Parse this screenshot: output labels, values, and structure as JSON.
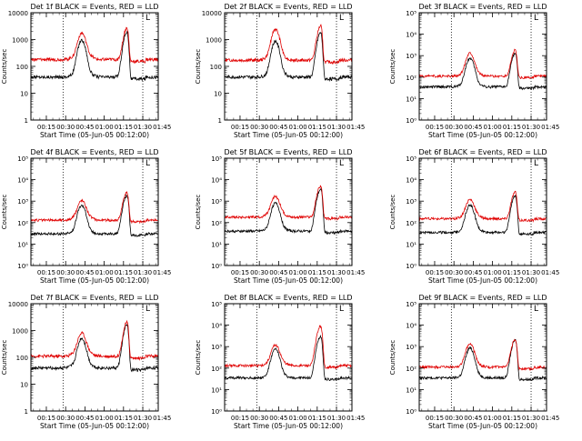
{
  "chart_data": [
    {
      "type": "line",
      "title": "Det 1f BLACK = Events, RED = LLD",
      "xlabel": "Start Time (05-Jun-05 00:12:00)",
      "ylabel": "Counts/sec",
      "yscale": "log",
      "ylim": [
        1,
        10000
      ],
      "ytick_values": [
        1,
        10,
        100,
        1000,
        10000
      ],
      "ytick_labels": [
        "1",
        "10",
        "100",
        "1000",
        "10000"
      ],
      "xlim_minutes": [
        3,
        102
      ],
      "xtick_values": [
        15,
        30,
        45,
        60,
        75,
        90,
        105
      ],
      "xtick_labels": [
        "00:15",
        "00:30",
        "00:45",
        "01:00",
        "01:15",
        "01:30",
        "01:45"
      ],
      "marker_lines_minutes": [
        28,
        90
      ],
      "series": [
        {
          "name": "Events",
          "color": "#000000",
          "baseline": 40,
          "peak1": 900,
          "peak2": 1900
        },
        {
          "name": "LLD",
          "color": "#e00000",
          "baseline": 180,
          "peak1": 1500,
          "peak2": 2700
        }
      ]
    },
    {
      "type": "line",
      "title": "Det 2f BLACK = Events, RED = LLD",
      "xlabel": "Start Time (05-Jun-05 00:12:00)",
      "ylabel": "Counts/sec",
      "yscale": "log",
      "ylim": [
        1,
        10000
      ],
      "ytick_values": [
        1,
        10,
        100,
        1000,
        10000
      ],
      "ytick_labels": [
        "1",
        "10",
        "100",
        "1000",
        "10000"
      ],
      "xlim_minutes": [
        3,
        102
      ],
      "xtick_values": [
        15,
        30,
        45,
        60,
        75,
        90,
        105
      ],
      "xtick_labels": [
        "00:15",
        "00:30",
        "00:45",
        "01:00",
        "01:15",
        "01:30",
        "01:45"
      ],
      "marker_lines_minutes": [
        28,
        90
      ],
      "series": [
        {
          "name": "Events",
          "color": "#000000",
          "baseline": 40,
          "peak1": 800,
          "peak2": 1800
        },
        {
          "name": "LLD",
          "color": "#e00000",
          "baseline": 170,
          "peak1": 2200,
          "peak2": 3200
        }
      ]
    },
    {
      "type": "line",
      "title": "Det 3f BLACK = Events, RED = LLD",
      "xlabel": "Start Time (05-Jun-05 00:12:00)",
      "ylabel": "Counts/sec",
      "yscale": "log",
      "ylim": [
        1,
        100000
      ],
      "ytick_values": [
        1,
        10,
        100,
        1000,
        10000,
        100000
      ],
      "ytick_labels": [
        "10⁰",
        "10¹",
        "10²",
        "10³",
        "10⁴",
        "10⁵"
      ],
      "xlim_minutes": [
        3,
        102
      ],
      "xtick_values": [
        15,
        30,
        45,
        60,
        75,
        90,
        105
      ],
      "xtick_labels": [
        "00:15",
        "00:30",
        "00:45",
        "01:00",
        "01:15",
        "01:30",
        "01:45"
      ],
      "marker_lines_minutes": [
        28,
        90
      ],
      "series": [
        {
          "name": "Events",
          "color": "#000000",
          "baseline": 35,
          "peak1": 700,
          "peak2": 1300
        },
        {
          "name": "LLD",
          "color": "#e00000",
          "baseline": 110,
          "peak1": 1200,
          "peak2": 1800
        }
      ]
    },
    {
      "type": "line",
      "title": "Det 4f BLACK = Events, RED = LLD",
      "xlabel": "Start Time (05-Jun-05 00:12:00)",
      "ylabel": "Counts/sec",
      "yscale": "log",
      "ylim": [
        1,
        100000
      ],
      "ytick_values": [
        1,
        10,
        100,
        1000,
        10000,
        100000
      ],
      "ytick_labels": [
        "10⁰",
        "10¹",
        "10²",
        "10³",
        "10⁴",
        "10⁵"
      ],
      "xlim_minutes": [
        3,
        102
      ],
      "xtick_values": [
        15,
        30,
        45,
        60,
        75,
        90,
        105
      ],
      "xtick_labels": [
        "00:15",
        "00:30",
        "00:45",
        "01:00",
        "01:15",
        "01:30",
        "01:45"
      ],
      "marker_lines_minutes": [
        28,
        90
      ],
      "series": [
        {
          "name": "Events",
          "color": "#000000",
          "baseline": 30,
          "peak1": 600,
          "peak2": 1800
        },
        {
          "name": "LLD",
          "color": "#e00000",
          "baseline": 130,
          "peak1": 900,
          "peak2": 2500
        }
      ]
    },
    {
      "type": "line",
      "title": "Det 5f BLACK = Events, RED = LLD",
      "xlabel": "Start Time (05-Jun-05 00:12:00)",
      "ylabel": "Counts/sec",
      "yscale": "log",
      "ylim": [
        1,
        100000
      ],
      "ytick_values": [
        1,
        10,
        100,
        1000,
        10000,
        100000
      ],
      "ytick_labels": [
        "10⁰",
        "10¹",
        "10²",
        "10³",
        "10⁴",
        "10⁵"
      ],
      "xlim_minutes": [
        3,
        102
      ],
      "xtick_values": [
        15,
        30,
        45,
        60,
        75,
        90,
        105
      ],
      "xtick_labels": [
        "00:15",
        "00:30",
        "00:45",
        "01:00",
        "01:15",
        "01:30",
        "01:45"
      ],
      "marker_lines_minutes": [
        28,
        90
      ],
      "series": [
        {
          "name": "Events",
          "color": "#000000",
          "baseline": 40,
          "peak1": 750,
          "peak2": 3500
        },
        {
          "name": "LLD",
          "color": "#e00000",
          "baseline": 180,
          "peak1": 1400,
          "peak2": 5000
        }
      ]
    },
    {
      "type": "line",
      "title": "Det 6f BLACK = Events, RED = LLD",
      "xlabel": "Start Time (05-Jun-05 00:12:00)",
      "ylabel": "Counts/sec",
      "yscale": "log",
      "ylim": [
        1,
        100000
      ],
      "ytick_values": [
        1,
        10,
        100,
        1000,
        10000,
        100000
      ],
      "ytick_labels": [
        "10⁰",
        "10¹",
        "10²",
        "10³",
        "10⁴",
        "10⁵"
      ],
      "xlim_minutes": [
        3,
        102
      ],
      "xtick_values": [
        15,
        30,
        45,
        60,
        75,
        90,
        105
      ],
      "xtick_labels": [
        "00:15",
        "00:30",
        "00:45",
        "01:00",
        "01:15",
        "01:30",
        "01:45"
      ],
      "marker_lines_minutes": [
        28,
        90
      ],
      "series": [
        {
          "name": "Events",
          "color": "#000000",
          "baseline": 35,
          "peak1": 600,
          "peak2": 1800
        },
        {
          "name": "LLD",
          "color": "#e00000",
          "baseline": 150,
          "peak1": 1000,
          "peak2": 2600
        }
      ]
    },
    {
      "type": "line",
      "title": "Det 7f BLACK = Events, RED = LLD",
      "xlabel": "Start Time (05-Jun-05 00:12:00)",
      "ylabel": "Counts/sec",
      "yscale": "log",
      "ylim": [
        1,
        10000
      ],
      "ytick_values": [
        1,
        10,
        100,
        1000,
        10000
      ],
      "ytick_labels": [
        "1",
        "10",
        "100",
        "1000",
        "10000"
      ],
      "xlim_minutes": [
        3,
        102
      ],
      "xtick_values": [
        15,
        30,
        45,
        60,
        75,
        90,
        105
      ],
      "xtick_labels": [
        "00:15",
        "00:30",
        "00:45",
        "01:00",
        "01:15",
        "01:30",
        "01:45"
      ],
      "marker_lines_minutes": [
        28,
        90
      ],
      "series": [
        {
          "name": "Events",
          "color": "#000000",
          "baseline": 40,
          "peak1": 450,
          "peak2": 1600
        },
        {
          "name": "LLD",
          "color": "#e00000",
          "baseline": 110,
          "peak1": 650,
          "peak2": 2000
        }
      ]
    },
    {
      "type": "line",
      "title": "Det 8f BLACK = Events, RED = LLD",
      "xlabel": "Start Time (05-Jun-05 00:12:00)",
      "ylabel": "Counts/sec",
      "yscale": "log",
      "ylim": [
        1,
        100000
      ],
      "ytick_values": [
        1,
        10,
        100,
        1000,
        10000,
        100000
      ],
      "ytick_labels": [
        "10⁰",
        "10¹",
        "10²",
        "10³",
        "10⁴",
        "10⁵"
      ],
      "xlim_minutes": [
        3,
        102
      ],
      "xtick_values": [
        15,
        30,
        45,
        60,
        75,
        90,
        105
      ],
      "xtick_labels": [
        "00:15",
        "00:30",
        "00:45",
        "01:00",
        "01:15",
        "01:30",
        "01:45"
      ],
      "marker_lines_minutes": [
        28,
        90
      ],
      "series": [
        {
          "name": "Events",
          "color": "#000000",
          "baseline": 35,
          "peak1": 700,
          "peak2": 3000
        },
        {
          "name": "LLD",
          "color": "#e00000",
          "baseline": 130,
          "peak1": 1000,
          "peak2": 9000
        }
      ]
    },
    {
      "type": "line",
      "title": "Det 9f BLACK = Events, RED = LLD",
      "xlabel": "Start Time (05-Jun-05 00:12:00)",
      "ylabel": "Counts/sec",
      "yscale": "log",
      "ylim": [
        1,
        100000
      ],
      "ytick_values": [
        1,
        10,
        100,
        1000,
        10000,
        100000
      ],
      "ytick_labels": [
        "10⁰",
        "10¹",
        "10²",
        "10³",
        "10⁴",
        "10⁵"
      ],
      "xlim_minutes": [
        3,
        102
      ],
      "xtick_values": [
        15,
        30,
        45,
        60,
        75,
        90,
        105
      ],
      "xtick_labels": [
        "00:15",
        "00:30",
        "00:45",
        "01:00",
        "01:15",
        "01:30",
        "01:45"
      ],
      "marker_lines_minutes": [
        28,
        90
      ],
      "series": [
        {
          "name": "Events",
          "color": "#000000",
          "baseline": 35,
          "peak1": 800,
          "peak2": 2000
        },
        {
          "name": "LLD",
          "color": "#e00000",
          "baseline": 110,
          "peak1": 1200,
          "peak2": 2200
        }
      ]
    }
  ],
  "marker_label": "L"
}
